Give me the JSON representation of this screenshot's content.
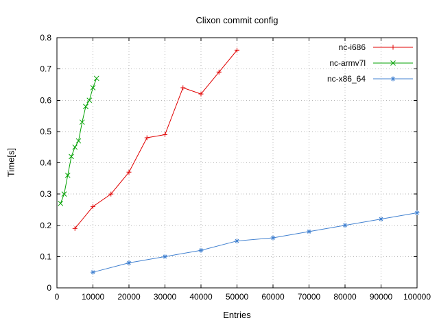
{
  "chart_data": {
    "type": "line",
    "title": "Clixon commit config",
    "xlabel": "Entries",
    "ylabel": "Time[s]",
    "xlim": [
      0,
      100000
    ],
    "ylim": [
      0,
      0.8
    ],
    "xticks": [
      0,
      10000,
      20000,
      30000,
      40000,
      50000,
      60000,
      70000,
      80000,
      90000,
      100000
    ],
    "yticks": [
      0,
      0.1,
      0.2,
      0.3,
      0.4,
      0.5,
      0.6,
      0.7,
      0.8
    ],
    "grid": "dotted",
    "legend_position": "top-right-inside",
    "border_color": "#000000",
    "grid_color": "#b4b4b4",
    "series": [
      {
        "name": "nc-i686",
        "color": "#e00000",
        "marker": "plus",
        "x": [
          5000,
          10000,
          15000,
          20000,
          25000,
          30000,
          35000,
          40000,
          45000,
          50000
        ],
        "y": [
          0.19,
          0.26,
          0.3,
          0.37,
          0.48,
          0.49,
          0.64,
          0.62,
          0.69,
          0.76
        ]
      },
      {
        "name": "nc-armv7l",
        "color": "#00a000",
        "marker": "cross",
        "x": [
          1000,
          2000,
          3000,
          4000,
          5000,
          6000,
          7000,
          8000,
          9000,
          10000,
          11000
        ],
        "y": [
          0.27,
          0.3,
          0.36,
          0.42,
          0.45,
          0.47,
          0.53,
          0.58,
          0.6,
          0.64,
          0.67
        ]
      },
      {
        "name": "nc-x86_64",
        "color": "#4080d0",
        "marker": "asterisk",
        "x": [
          10000,
          20000,
          30000,
          40000,
          50000,
          60000,
          70000,
          80000,
          90000,
          100000
        ],
        "y": [
          0.05,
          0.08,
          0.1,
          0.12,
          0.15,
          0.16,
          0.18,
          0.2,
          0.22,
          0.24
        ]
      }
    ]
  }
}
